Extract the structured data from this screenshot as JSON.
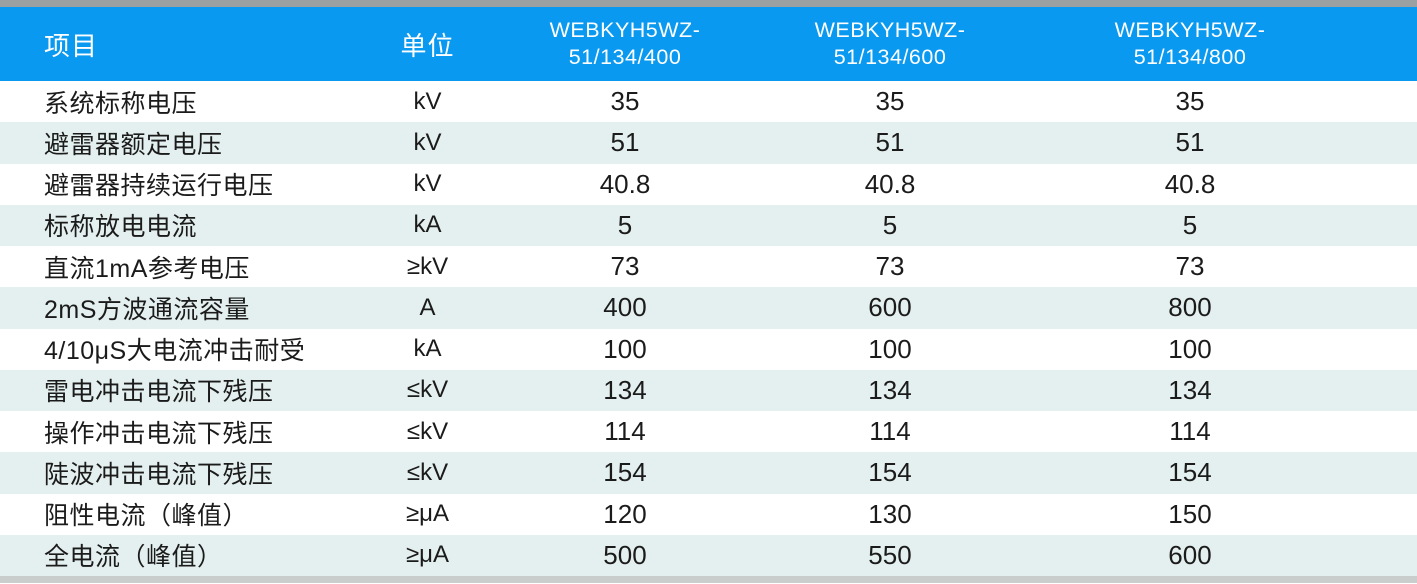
{
  "table": {
    "header": {
      "item": "项目",
      "unit": "单位",
      "models": [
        {
          "line1": "WEBKYH5WZ-",
          "line2": "51/134/400"
        },
        {
          "line1": "WEBKYH5WZ-",
          "line2": "51/134/600"
        },
        {
          "line1": "WEBKYH5WZ-",
          "line2": "51/134/800"
        }
      ]
    },
    "rows": [
      {
        "label": "系统标称电压",
        "unit": "kV",
        "values": [
          "35",
          "35",
          "35"
        ]
      },
      {
        "label": "避雷器额定电压",
        "unit": "kV",
        "values": [
          "51",
          "51",
          "51"
        ]
      },
      {
        "label": "避雷器持续运行电压",
        "unit": "kV",
        "values": [
          "40.8",
          "40.8",
          "40.8"
        ]
      },
      {
        "label": "标称放电电流",
        "unit": "kA",
        "values": [
          "5",
          "5",
          "5"
        ]
      },
      {
        "label": "直流1mA参考电压",
        "unit": "≥kV",
        "values": [
          "73",
          "73",
          "73"
        ]
      },
      {
        "label": "2mS方波通流容量",
        "unit": "A",
        "values": [
          "400",
          "600",
          "800"
        ]
      },
      {
        "label": "4/10μS大电流冲击耐受",
        "unit": "kA",
        "values": [
          "100",
          "100",
          "100"
        ]
      },
      {
        "label": "雷电冲击电流下残压",
        "unit": "≤kV",
        "values": [
          "134",
          "134",
          "134"
        ]
      },
      {
        "label": "操作冲击电流下残压",
        "unit": "≤kV",
        "values": [
          "114",
          "114",
          "114"
        ]
      },
      {
        "label": "陡波冲击电流下残压",
        "unit": "≤kV",
        "values": [
          "154",
          "154",
          "154"
        ]
      },
      {
        "label": "阻性电流（峰值）",
        "unit": "≥μA",
        "values": [
          "120",
          "130",
          "150"
        ]
      },
      {
        "label": "全电流（峰值）",
        "unit": "≥μA",
        "values": [
          "500",
          "550",
          "600"
        ]
      }
    ]
  },
  "colors": {
    "header_bg": "#0a99f0",
    "header_text": "#ffffff",
    "row_bg": "#ffffff",
    "row_alt_bg": "#e4f0ef",
    "body_text": "#1b1b1b",
    "top_bar": "#9ba1a2",
    "bottom_bar": "#c9cdcc"
  }
}
